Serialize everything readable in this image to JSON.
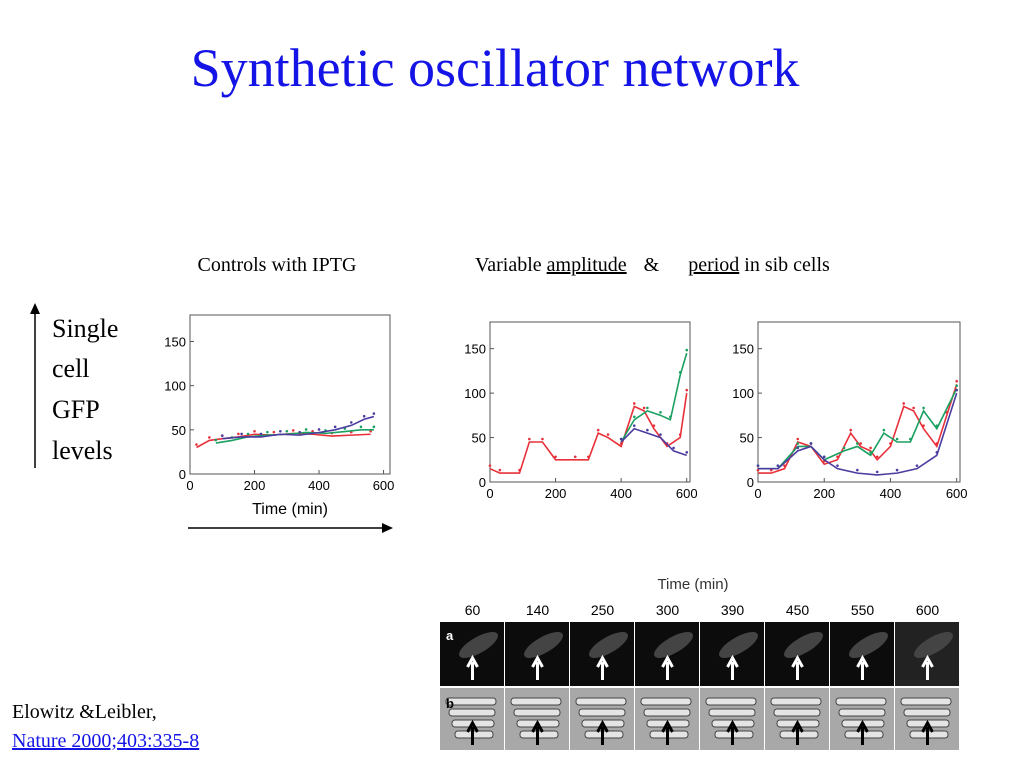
{
  "slide": {
    "title": "Synthetic oscillator network",
    "left_header": "Controls with IPTG",
    "right_header": [
      "Variable",
      "amplitude",
      "&",
      "period",
      "in sib cells"
    ],
    "y_label": [
      "Single",
      "cell",
      "GFP",
      "levels"
    ],
    "citation": "Elowitz &Leibler,",
    "citation_link": "Nature 2000;403:335-8"
  },
  "image_strip": {
    "axis_label": "Time (min)",
    "frames": [
      "60",
      "140",
      "250",
      "300",
      "390",
      "450",
      "550",
      "600"
    ],
    "rows": [
      "a",
      "b"
    ]
  },
  "chart_data": [
    {
      "type": "line",
      "x_label": "Time (min)",
      "xlim": [
        0,
        620
      ],
      "ylim": [
        0,
        180
      ],
      "xticks": [
        0,
        200,
        400,
        600
      ],
      "yticks": [
        0,
        50,
        100,
        150
      ],
      "series": [
        {
          "color": "#e8303a",
          "x": [
            20,
            60,
            100,
            150,
            200,
            260,
            320,
            380,
            440,
            500,
            560
          ],
          "values": [
            30,
            38,
            40,
            42,
            45,
            44,
            46,
            45,
            43,
            44,
            45
          ]
        },
        {
          "color": "#1aa060",
          "x": [
            80,
            130,
            180,
            240,
            300,
            360,
            420,
            480,
            530,
            570
          ],
          "values": [
            35,
            38,
            42,
            44,
            45,
            47,
            46,
            48,
            50,
            50
          ]
        },
        {
          "color": "#4b3ca0",
          "x": [
            100,
            160,
            220,
            280,
            340,
            400,
            450,
            500,
            540,
            570
          ],
          "values": [
            40,
            42,
            42,
            45,
            44,
            47,
            50,
            55,
            62,
            65
          ]
        }
      ]
    },
    {
      "type": "line",
      "xlim": [
        0,
        610
      ],
      "ylim": [
        0,
        180
      ],
      "xticks": [
        0,
        200,
        400,
        600
      ],
      "yticks": [
        0,
        50,
        100,
        150
      ],
      "series": [
        {
          "color": "#e8303a",
          "x": [
            0,
            30,
            90,
            120,
            160,
            200,
            260,
            300,
            330,
            360,
            400,
            440,
            470,
            500,
            540,
            580,
            600
          ],
          "values": [
            15,
            10,
            10,
            45,
            45,
            25,
            25,
            25,
            55,
            50,
            40,
            85,
            80,
            60,
            40,
            50,
            100
          ]
        },
        {
          "color": "#1aa060",
          "x": [
            400,
            440,
            480,
            520,
            550,
            580,
            600
          ],
          "values": [
            45,
            70,
            80,
            75,
            70,
            120,
            145
          ]
        },
        {
          "color": "#4b3ca0",
          "x": [
            400,
            440,
            480,
            520,
            560,
            600
          ],
          "values": [
            45,
            60,
            55,
            50,
            35,
            30
          ]
        }
      ]
    },
    {
      "type": "line",
      "xlim": [
        0,
        610
      ],
      "ylim": [
        0,
        180
      ],
      "xticks": [
        0,
        200,
        400,
        600
      ],
      "yticks": [
        0,
        50,
        100,
        150
      ],
      "series": [
        {
          "color": "#e8303a",
          "x": [
            0,
            40,
            80,
            120,
            160,
            200,
            240,
            280,
            310,
            340,
            360,
            400,
            440,
            470,
            500,
            540,
            570,
            600
          ],
          "values": [
            10,
            10,
            15,
            45,
            40,
            20,
            25,
            55,
            40,
            35,
            25,
            40,
            85,
            80,
            60,
            40,
            75,
            110
          ]
        },
        {
          "color": "#1aa060",
          "x": [
            0,
            60,
            120,
            160,
            200,
            260,
            300,
            340,
            380,
            420,
            460,
            500,
            540,
            600
          ],
          "values": [
            15,
            15,
            40,
            40,
            25,
            35,
            40,
            30,
            55,
            45,
            45,
            80,
            60,
            105
          ]
        },
        {
          "color": "#4b3ca0",
          "x": [
            0,
            60,
            120,
            160,
            200,
            240,
            300,
            360,
            420,
            480,
            540,
            600
          ],
          "values": [
            15,
            15,
            35,
            40,
            25,
            15,
            10,
            8,
            10,
            15,
            30,
            100
          ]
        }
      ]
    }
  ]
}
